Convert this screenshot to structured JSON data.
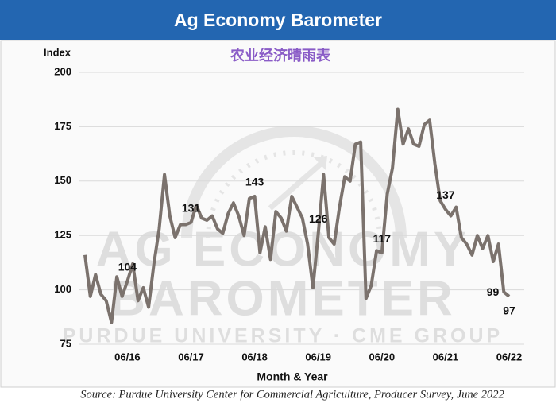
{
  "chart_data": {
    "type": "line",
    "title": "Ag Economy Barometer",
    "subtitle": "农业经济晴雨表",
    "y_label": "Index",
    "x_label": "Month & Year",
    "source": "Source: Purdue University Center for Commercial Agriculture, Producer Survey, June 2022",
    "watermark": [
      "AG ECONOMY",
      "BAROMETER",
      "PURDUE UNIVERSITY · CME GROUP"
    ],
    "categories": [
      null,
      null,
      null,
      null,
      null,
      null,
      null,
      null,
      "06/16",
      null,
      null,
      null,
      null,
      null,
      null,
      null,
      null,
      null,
      null,
      null,
      "06/17",
      null,
      null,
      null,
      null,
      null,
      null,
      null,
      null,
      null,
      null,
      null,
      "06/18",
      null,
      null,
      null,
      null,
      null,
      null,
      null,
      null,
      null,
      null,
      null,
      "06/19",
      null,
      null,
      null,
      null,
      null,
      null,
      null,
      null,
      null,
      null,
      null,
      "06/20",
      null,
      null,
      null,
      null,
      null,
      null,
      null,
      null,
      null,
      null,
      null,
      "06/21",
      null,
      null,
      null,
      null,
      null,
      null,
      null,
      null,
      null,
      null,
      null,
      "06/22"
    ],
    "series": [
      {
        "name": "Index",
        "color": "#7b726d",
        "values": [
          116,
          97,
          107,
          98,
          95,
          85,
          106,
          97,
          104,
          112,
          95,
          101,
          92,
          112,
          128,
          153,
          134,
          124,
          130,
          130,
          131,
          139,
          133,
          132,
          134,
          128,
          126,
          135,
          140,
          134,
          125,
          142,
          143,
          117,
          129,
          114,
          136,
          133,
          127,
          143,
          138,
          133,
          121,
          101,
          126,
          153,
          124,
          121,
          138,
          152,
          150,
          167,
          168,
          96,
          102,
          118,
          117,
          144,
          156,
          183,
          167,
          174,
          167,
          166,
          176,
          178,
          158,
          141,
          137,
          134,
          138,
          124,
          121,
          116,
          125,
          119,
          125,
          113,
          121,
          99,
          97
        ]
      }
    ],
    "labeled_points": [
      8,
      20,
      32,
      44,
      56,
      68,
      79,
      80
    ],
    "ylim": [
      75,
      200
    ],
    "yticks": [
      75,
      100,
      125,
      150,
      175,
      200
    ],
    "grid": true
  }
}
